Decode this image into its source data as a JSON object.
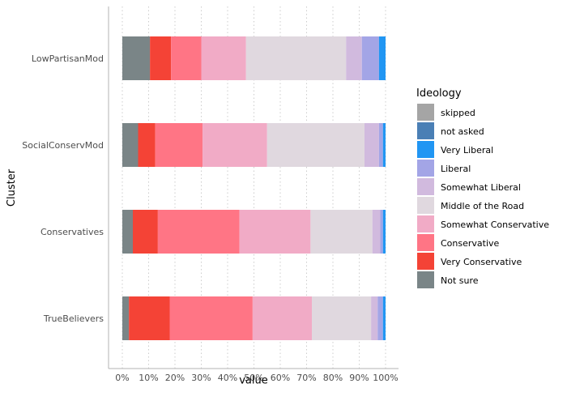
{
  "chart_data": {
    "type": "bar",
    "orientation": "horizontal",
    "stacked": true,
    "xlabel": "value",
    "ylabel": "Cluster",
    "xlim": [
      0,
      1
    ],
    "x_ticks": [
      "0%",
      "10%",
      "20%",
      "30%",
      "40%",
      "50%",
      "60%",
      "70%",
      "80%",
      "90%",
      "100%"
    ],
    "grid": "vertical dotted",
    "legend_position": "right",
    "legend_title": "Ideology",
    "categories": [
      "TrueBelievers",
      "Conservatives",
      "SocialConservMod",
      "LowPartisanMod"
    ],
    "series": [
      {
        "name": "Not sure",
        "color": "#7a8587",
        "values": [
          0.025,
          0.04,
          0.06,
          0.105
        ]
      },
      {
        "name": "Very Conservative",
        "color": "#f44336",
        "values": [
          0.155,
          0.095,
          0.065,
          0.08
        ]
      },
      {
        "name": "Conservative",
        "color": "#ff7585",
        "values": [
          0.315,
          0.31,
          0.18,
          0.115
        ]
      },
      {
        "name": "Somewhat Conservative",
        "color": "#f1abc6",
        "values": [
          0.225,
          0.27,
          0.245,
          0.17
        ]
      },
      {
        "name": "Middle of the Road",
        "color": "#e0d8df",
        "values": [
          0.225,
          0.235,
          0.37,
          0.38
        ]
      },
      {
        "name": "Somewhat Liberal",
        "color": "#d1bade",
        "values": [
          0.025,
          0.03,
          0.055,
          0.06
        ]
      },
      {
        "name": "Liberal",
        "color": "#a3a5e6",
        "values": [
          0.02,
          0.01,
          0.015,
          0.065
        ]
      },
      {
        "name": "Very Liberal",
        "color": "#2196f3",
        "values": [
          0.01,
          0.01,
          0.01,
          0.025
        ]
      },
      {
        "name": "not asked",
        "color": "#4a7fb5",
        "values": [
          0,
          0,
          0,
          0
        ]
      },
      {
        "name": "skipped",
        "color": "#a5a5a5",
        "values": [
          0,
          0,
          0,
          0
        ]
      }
    ],
    "legend_order": [
      "skipped",
      "not asked",
      "Very Liberal",
      "Liberal",
      "Somewhat Liberal",
      "Middle of the Road",
      "Somewhat Conservative",
      "Conservative",
      "Very Conservative",
      "Not sure"
    ]
  }
}
